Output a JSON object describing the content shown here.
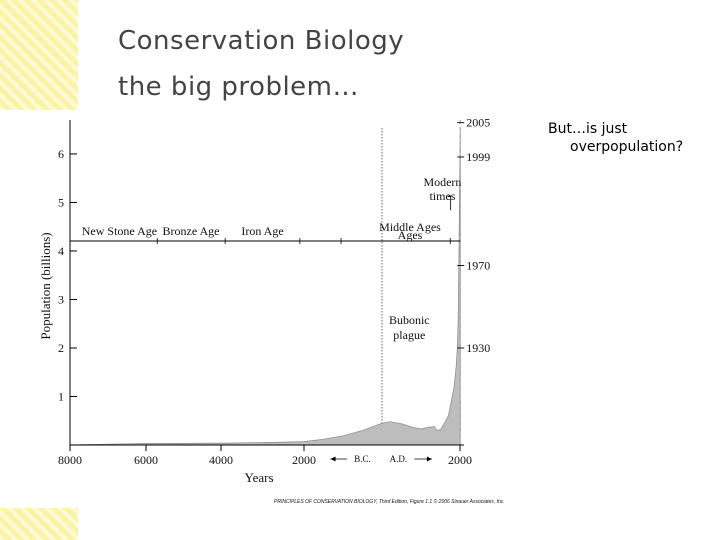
{
  "slide": {
    "title_line1": "Conservation Biology",
    "title_line2": "the big problem…",
    "side_note_line1": "But…is just",
    "side_note_line2": "overpopulation?"
  },
  "colors": {
    "accent_strip": "#fbf3a6",
    "area_fill": "#bdbdbd",
    "title_text": "#444444"
  },
  "chart_data": {
    "type": "area",
    "ylabel": "Population (billions)",
    "xlabel": "Years",
    "y_ticks": [
      1,
      2,
      3,
      4,
      5,
      6
    ],
    "ylim": [
      0,
      6.7
    ],
    "x_ticks": [
      {
        "label": "8000",
        "year": -8000
      },
      {
        "label": "6000",
        "year": -6000
      },
      {
        "label": "4000",
        "year": -4000
      },
      {
        "label": "2000",
        "year": -2000
      },
      {
        "label": "2000",
        "year": 2000
      }
    ],
    "xlim": [
      -8000,
      2100
    ],
    "era_labels": {
      "bc": "B.C.",
      "ad": "A.D."
    },
    "series": [
      {
        "x": [
          -8000,
          -6000,
          -4000,
          -3000,
          -2000,
          -1500,
          -1000,
          -500,
          0,
          200,
          500,
          800,
          1000,
          1200,
          1347,
          1400,
          1500,
          1600,
          1700,
          1750,
          1800,
          1850,
          1900,
          1930,
          1950,
          1970,
          1999,
          2005
        ],
        "y": [
          0.005,
          0.03,
          0.04,
          0.05,
          0.07,
          0.12,
          0.19,
          0.3,
          0.45,
          0.48,
          0.44,
          0.36,
          0.33,
          0.37,
          0.38,
          0.3,
          0.32,
          0.45,
          0.6,
          0.8,
          1.0,
          1.2,
          1.6,
          2.0,
          2.5,
          3.7,
          6.0,
          6.5
        ]
      }
    ],
    "ages": [
      "New Stone Age",
      "Bronze Age",
      "Iron Age",
      "Middle Ages"
    ],
    "ages_line2": "Ages",
    "modern_times": [
      "Modern",
      "times"
    ],
    "plague": [
      "Bubonic",
      "plague"
    ],
    "year_markers": [
      {
        "label": "2005",
        "value": 6.5
      },
      {
        "label": "1999",
        "value": 6.0
      },
      {
        "label": "1970",
        "value": 3.7
      },
      {
        "label": "1930",
        "value": 2.0
      }
    ],
    "credit": "PRINCIPLES OF CONSERVATION BIOLOGY, Third Edition, Figure 1.1  © 2006 Sinauer Associates, Inc."
  }
}
